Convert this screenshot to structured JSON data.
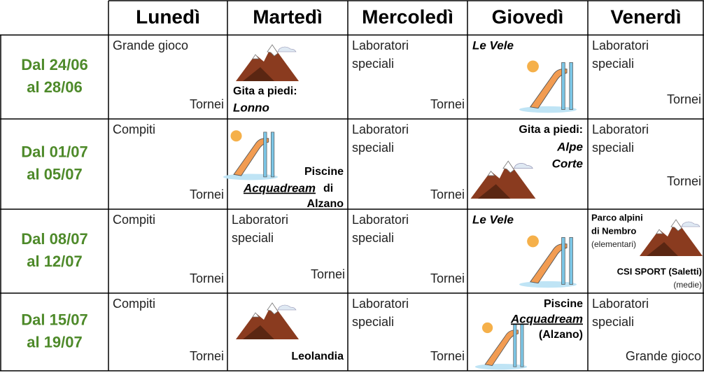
{
  "header": [
    "Lunedì",
    "Martedì",
    "Mercoledì",
    "Giovedì",
    "Venerdì"
  ],
  "rows": [
    {
      "period": [
        "Dal 24/06",
        "al 28/06"
      ],
      "mon": [
        "Grande gioco",
        "Tornei"
      ],
      "tue": [
        "Gita a piedi:",
        "Lonno"
      ],
      "wed": [
        "Laboratori",
        "speciali",
        "Tornei"
      ],
      "thu": [
        "Le Vele"
      ],
      "fri": [
        "Laboratori",
        "speciali",
        "Tornei"
      ]
    },
    {
      "period": [
        "Dal 01/07",
        "al 05/07"
      ],
      "mon": [
        "Compiti",
        "Tornei"
      ],
      "tue": [
        "Piscine",
        "Acquadream",
        "di",
        "Alzano"
      ],
      "wed": [
        "Laboratori",
        "speciali",
        "Tornei"
      ],
      "thu": [
        "Gita a piedi:",
        "Alpe",
        "Corte"
      ],
      "fri": [
        "Laboratori",
        "speciali",
        "Tornei"
      ]
    },
    {
      "period": [
        "Dal 08/07",
        "al 12/07"
      ],
      "mon": [
        "Compiti",
        "Tornei"
      ],
      "tue": [
        "Laboratori",
        "speciali",
        "Tornei"
      ],
      "wed": [
        "Laboratori",
        "speciali",
        "Tornei"
      ],
      "thu": [
        "Le Vele"
      ],
      "fri": [
        "Parco alpini",
        "di Nembro",
        "(elementari)",
        "CSI SPORT (Saletti)",
        "(medie)"
      ]
    },
    {
      "period": [
        "Dal 15/07",
        "al 19/07"
      ],
      "mon": [
        "Compiti",
        "Tornei"
      ],
      "tue": [
        "Leolandia"
      ],
      "wed": [
        "Laboratori",
        "speciali",
        "Tornei"
      ],
      "thu": [
        "Piscine",
        "Acquadream",
        "(Alzano)"
      ],
      "fri": [
        "Laboratori",
        "speciali",
        "Grande gioco"
      ]
    }
  ]
}
